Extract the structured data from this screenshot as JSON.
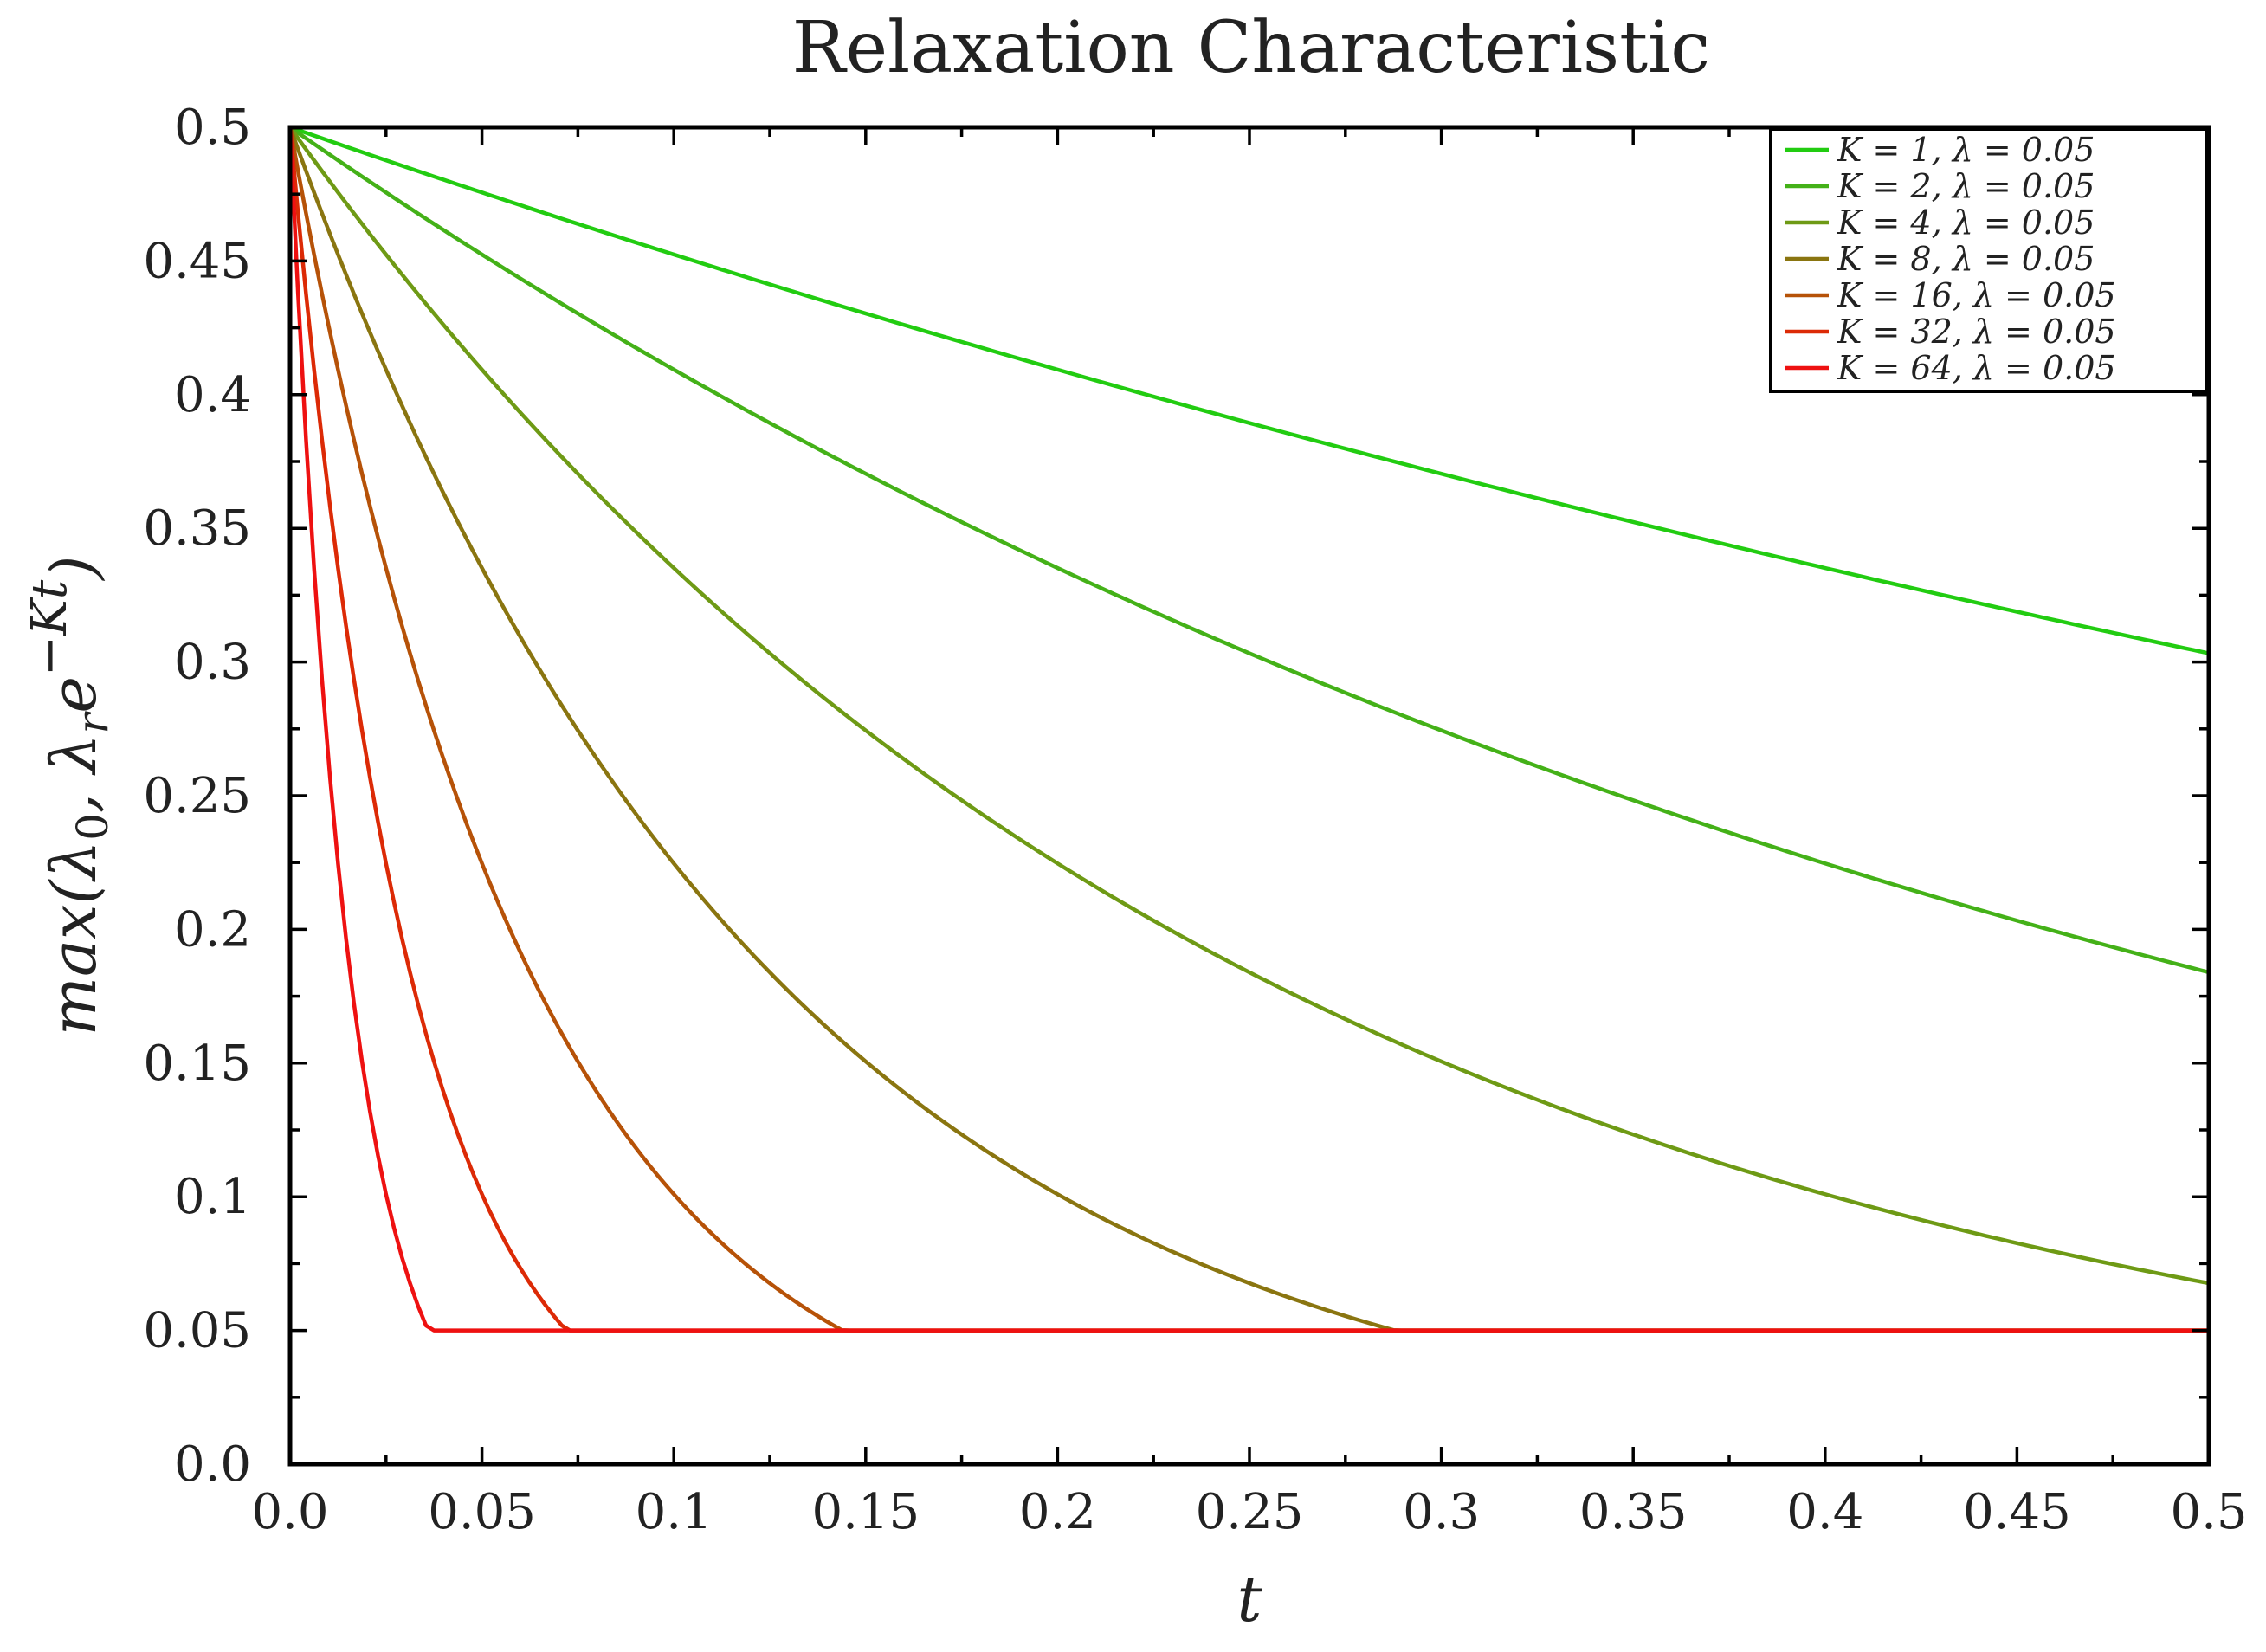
{
  "chart_data": {
    "type": "line",
    "title": "Relaxation Characteristic",
    "xlabel": "t",
    "ylabel_parts": {
      "prefix": "max(λ",
      "sub0": "0",
      "mid": ", λ",
      "subr": "r",
      "base": "e",
      "exponent": "−Kt",
      "suffix": ")"
    },
    "xlim": [
      0,
      0.5
    ],
    "ylim": [
      0,
      0.5
    ],
    "xticks": [
      0,
      0.05,
      0.1,
      0.15,
      0.2,
      0.25,
      0.3,
      0.35,
      0.4,
      0.45,
      0.5
    ],
    "xtick_labels": [
      "0.0",
      "0.05",
      "0.1",
      "0.15",
      "0.2",
      "0.25",
      "0.3",
      "0.35",
      "0.4",
      "0.45",
      "0.5"
    ],
    "yticks": [
      0,
      0.05,
      0.1,
      0.15,
      0.2,
      0.25,
      0.3,
      0.35,
      0.4,
      0.45,
      0.5
    ],
    "ytick_labels": [
      "0.0",
      "0.05",
      "0.1",
      "0.15",
      "0.2",
      "0.25",
      "0.3",
      "0.35",
      "0.4",
      "0.45",
      "0.5"
    ],
    "grid": false,
    "legend_position": "top-right",
    "lambda_r": 0.5,
    "lambda_0": 0.05,
    "series": [
      {
        "name": "K = 1, λ = 0.05",
        "K": 1,
        "color": "#22cc11"
      },
      {
        "name": "K = 2, λ = 0.05",
        "K": 2,
        "color": "#44b118"
      },
      {
        "name": "K = 4, λ = 0.05",
        "K": 4,
        "color": "#6e9a15"
      },
      {
        "name": "K = 8, λ = 0.05",
        "K": 8,
        "color": "#8a7510"
      },
      {
        "name": "K = 16, λ = 0.05",
        "K": 16,
        "color": "#b65208"
      },
      {
        "name": "K = 32, λ = 0.05",
        "K": 32,
        "color": "#dc2a06"
      },
      {
        "name": "K = 64, λ = 0.05",
        "K": 64,
        "color": "#ee1111"
      }
    ]
  }
}
